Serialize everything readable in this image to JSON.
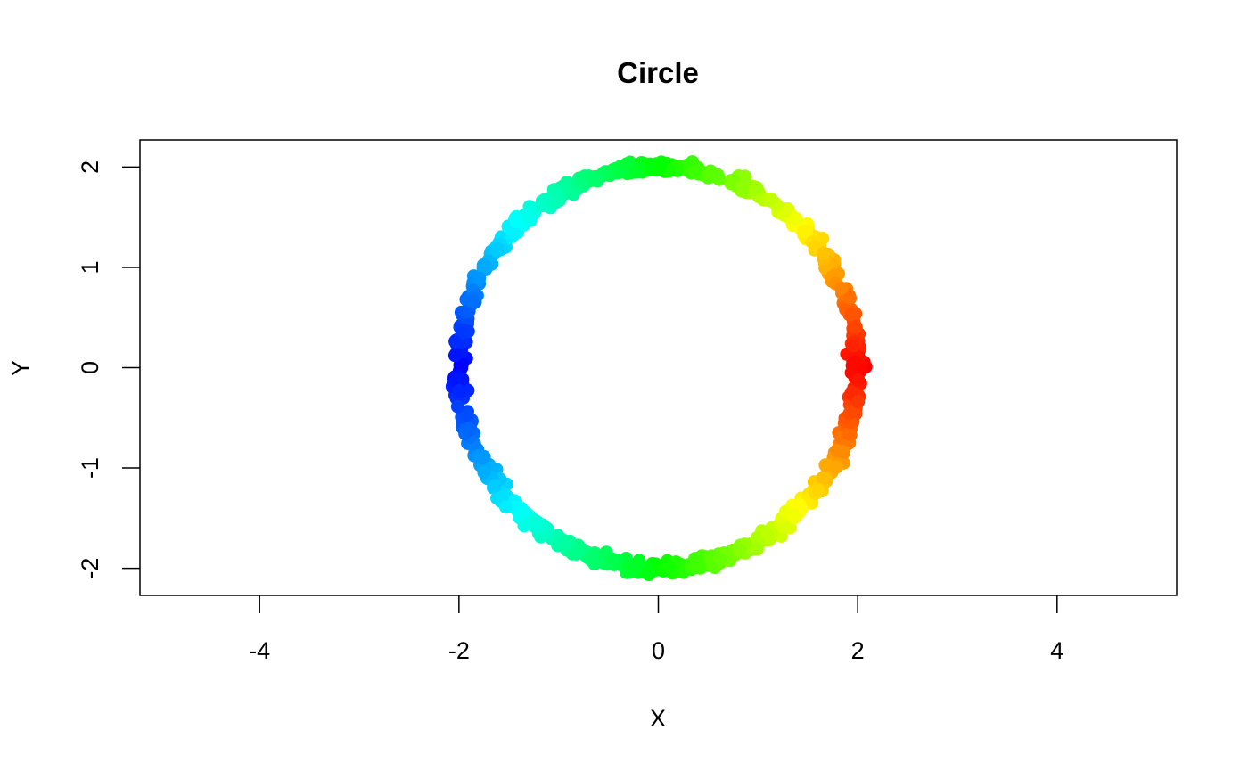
{
  "chart_data": {
    "type": "scatter",
    "title": "Circle",
    "xlabel": "X",
    "ylabel": "Y",
    "xlim": [
      -5.2,
      5.2
    ],
    "ylim": [
      -2.27,
      2.27
    ],
    "x_ticks": [
      -4,
      -2,
      0,
      2,
      4
    ],
    "x_tick_labels": [
      "-4",
      "-2",
      "0",
      "2",
      "4"
    ],
    "y_ticks": [
      -2,
      -1,
      0,
      1,
      2
    ],
    "y_tick_labels": [
      "-2",
      "-1",
      "0",
      "1",
      "2"
    ],
    "grid": false,
    "legend": "none",
    "shape": "circle",
    "radius": 2,
    "point_count": 1000,
    "color_gradient": [
      "#FF0000",
      "#FF8000",
      "#FFFF00",
      "#00FF00",
      "#00FFFF",
      "#0080FF",
      "#0000FF"
    ],
    "color_note": "rainbow by angle: red at right (0°), orange, yellow, green at top/bottom, cyan, light blue, blue at left (180°)"
  }
}
